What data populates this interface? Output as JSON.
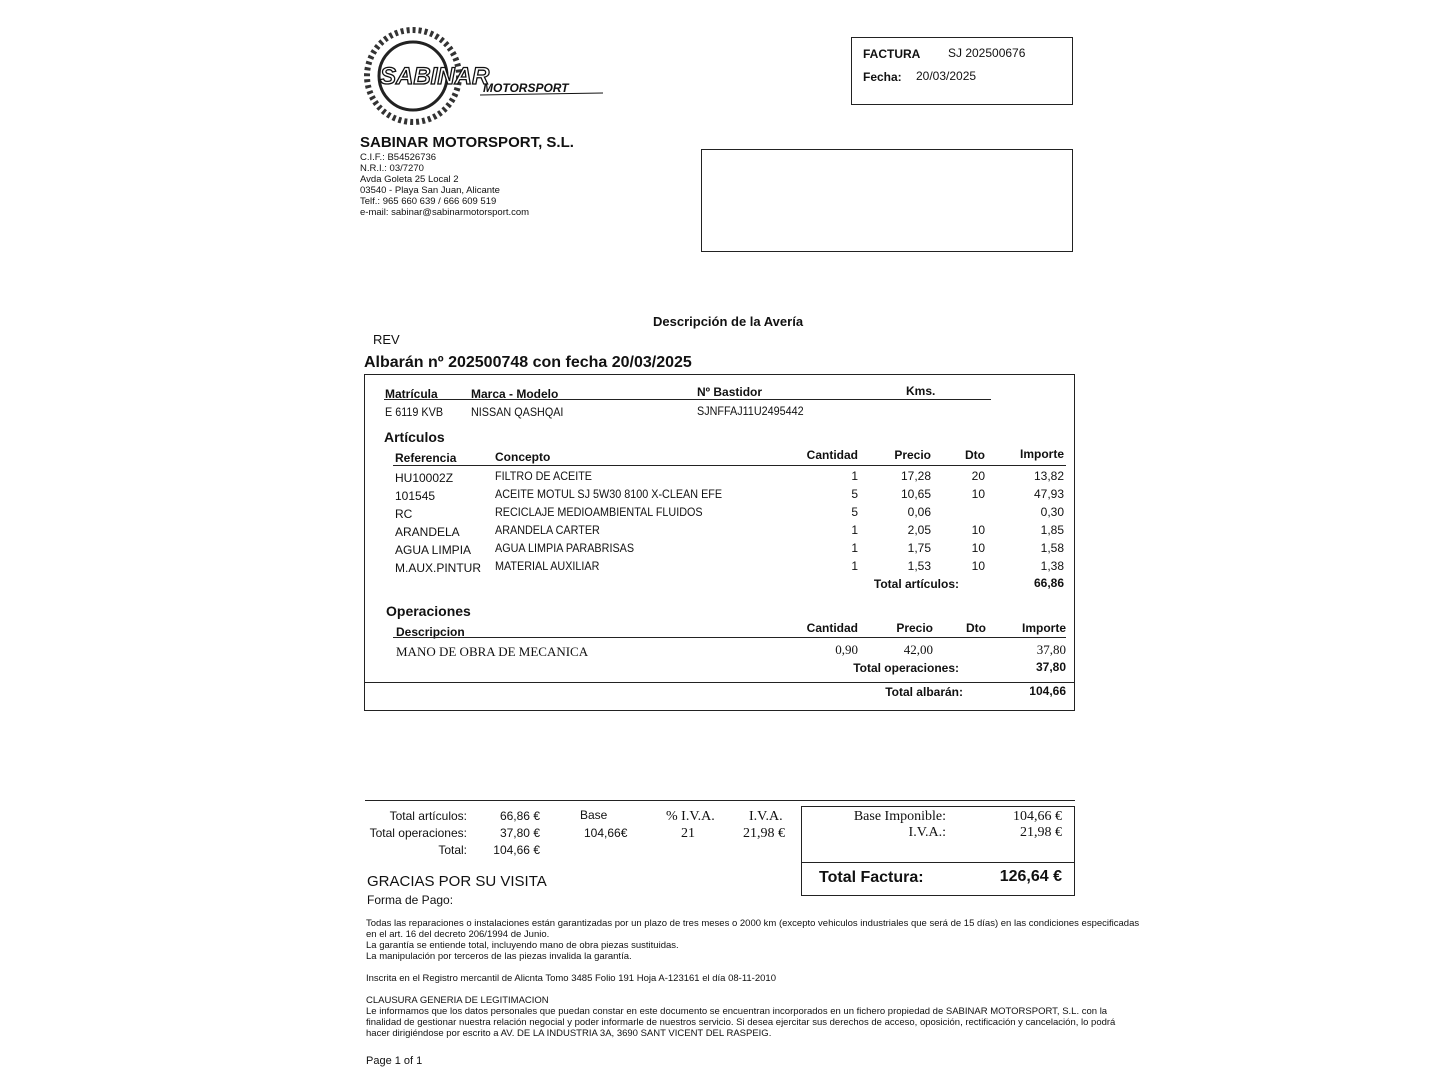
{
  "company": {
    "logo_text": "SABINAR",
    "logo_sub": "MOTORSPORT",
    "name": "SABINAR MOTORSPORT, S.L.",
    "lines": [
      "C.I.F.: B54526736",
      "N.R.I.: 03/7270",
      "Avda Goleta 25 Local 2",
      "03540 - Playa San Juan, Alicante",
      "Telf.: 965 660 639 / 666 609 519",
      "e-mail: sabinar@sabinarmotorsport.com"
    ]
  },
  "invoice": {
    "factura_label": "FACTURA",
    "factura_number": "SJ 202500676",
    "fecha_label": "Fecha:",
    "fecha": "20/03/2025"
  },
  "description_title": "Descripción de la Avería",
  "rev": "REV",
  "albaran_title": "Albarán nº 202500748 con fecha 20/03/2025",
  "vehicle": {
    "headers": [
      "Matrícula",
      "Marca  -  Modelo",
      "Nº Bastidor",
      "Kms."
    ],
    "values": [
      "E 6119 KVB",
      "NISSAN QASHQAI",
      "SJNFFAJ11U2495442",
      ""
    ]
  },
  "articulos": {
    "title": "Artículos",
    "headers": [
      "Referencia",
      "Concepto",
      "Cantidad",
      "Precio",
      "Dto",
      "Importe"
    ],
    "rows": [
      [
        "HU10002Z",
        "FILTRO DE ACEITE",
        "1",
        "17,28",
        "20",
        "13,82"
      ],
      [
        "101545",
        "ACEITE MOTUL SJ 5W30 8100 X-CLEAN EFE",
        "5",
        "10,65",
        "10",
        "47,93"
      ],
      [
        "RC",
        "RECICLAJE MEDIOAMBIENTAL FLUIDOS",
        "5",
        "0,06",
        "",
        "0,30"
      ],
      [
        "ARANDELA",
        "ARANDELA CARTER",
        "1",
        "2,05",
        "10",
        "1,85"
      ],
      [
        "AGUA LIMPIA",
        "AGUA LIMPIA PARABRISAS",
        "1",
        "1,75",
        "10",
        "1,58"
      ],
      [
        "M.AUX.PINTUR",
        "MATERIAL AUXILIAR",
        "1",
        "1,53",
        "10",
        "1,38"
      ]
    ],
    "total_label": "Total artículos:",
    "total": "66,86"
  },
  "operaciones": {
    "title": "Operaciones",
    "headers": [
      "Descripcion",
      "Cantidad",
      "Precio",
      "Dto",
      "Importe"
    ],
    "rows": [
      [
        "MANO DE OBRA DE MECANICA",
        "0,90",
        "42,00",
        "",
        "37,80"
      ]
    ],
    "total_label": "Total operaciones:",
    "total": "37,80"
  },
  "total_albaran_label": "Total albarán:",
  "total_albaran": "104,66",
  "summary": {
    "labels": [
      "Total artículos:",
      "Total operaciones:",
      "Total:"
    ],
    "values": [
      "66,86 €",
      "37,80 €",
      "104,66 €"
    ],
    "base_label": "Base",
    "base": "104,66€",
    "iva_pct_label": "% I.V.A.",
    "iva_pct": "21",
    "iva_label": "I.V.A.",
    "iva": "21,98 €",
    "base_imponible_label": "Base Imponible:",
    "base_imponible": "104,66 €",
    "iva2_label": "I.V.A.:",
    "iva2": "21,98 €",
    "total_factura_label": "Total Factura:",
    "total_factura": "126,64 €"
  },
  "thanks": "GRACIAS POR SU VISITA",
  "forma_pago": "Forma de Pago:",
  "legal": [
    "Todas las reparaciones o instalaciones están garantizadas por un plazo de tres meses o 2000 km (excepto vehiculos industriales que será de 15 días) en las condiciones especificadas",
    "en el art. 16 del decreto 206/1994 de Junio.",
    "La garantía se entiende total, incluyendo mano de obra piezas sustituidas.",
    "La manipulación por terceros de las piezas invalida la garantía."
  ],
  "registro": "Inscrita en el Registro mercantil de Alicnta Tomo 3485 Folio 191 Hoja A-123161 el día 08-11-2010",
  "clausula_title": "CLAUSURA GENERIA DE LEGITIMACION",
  "clausula": [
    "Le informamos que los datos personales que puedan constar en este documento se encuentran incorporados en un fichero propiedad de SABINAR MOTORSPORT, S.L. con la",
    "finalidad de gestionar nuestra relación negocial y poder informarle de nuestros servicio.  Si desea ejercitar sus derechos de acceso, oposición, rectificación y cancelación, lo podrá",
    "hacer dirigiéndose por escrito a AV.  DE LA INDUSTRIA 3A, 3690 SANT VICENT DEL RASPEIG."
  ],
  "page": "Page 1 of 1"
}
